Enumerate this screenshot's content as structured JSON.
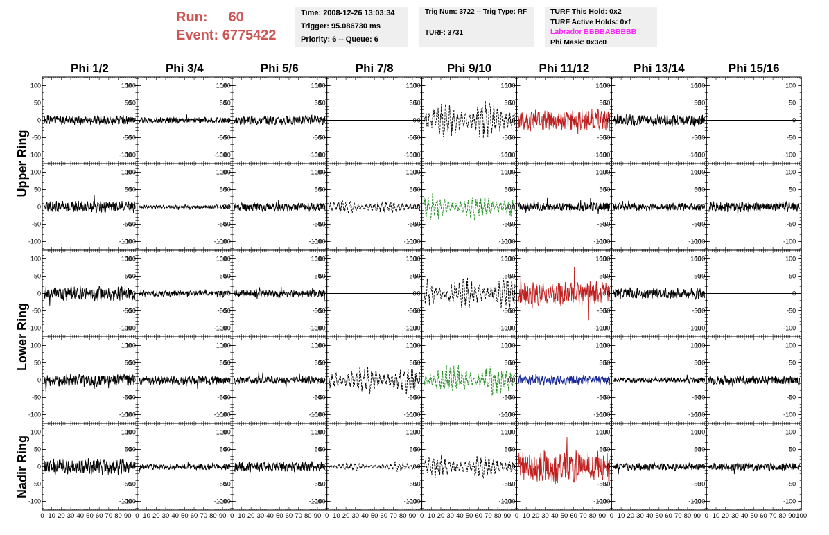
{
  "header": {
    "run_label": "Run:",
    "run_value": "60",
    "event_label": "Event:",
    "event_value": "6775422"
  },
  "info_boxes": {
    "time": "Time: 2008-12-26 13:03:34",
    "trigger": "Trigger: 95.086730 ms",
    "priority": "Priority: 6 -- Queue: 6",
    "trig_num": "Trig Num: 3722 -- Trig Type: RF",
    "turf": "TURF: 3731",
    "turf_this_hold": "TURF This Hold: 0x2",
    "turf_active_holds": "TURF Active Holds: 0xf",
    "labrador": "Labrador BBBBABBBBB",
    "phi_mask": "Phi Mask: 0x3c0"
  },
  "colors": {
    "run_text": "#cc5555",
    "labrador_text": "#ff22ff",
    "info_box_bg": "#efefef",
    "trace_red": "#c02020",
    "trace_green": "#1f8f1f",
    "trace_blue": "#1a2a9a",
    "trace_black": "#000000"
  },
  "chart_data": {
    "type": "line",
    "phi_sectors": [
      "Phi 1/2",
      "Phi 3/4",
      "Phi 5/6",
      "Phi 7/8",
      "Phi 9/10",
      "Phi 11/12",
      "Phi 13/14",
      "Phi 15/16"
    ],
    "rings": [
      "Upper Ring",
      "Lower Ring",
      "Nadir Ring"
    ],
    "ring_spans": [
      2,
      2,
      1
    ],
    "rows": 5,
    "x_range": [
      0,
      100
    ],
    "y_range": [
      -125,
      125
    ],
    "x_ticks": [
      "0",
      "10",
      "20",
      "30",
      "40",
      "50",
      "60",
      "70",
      "80",
      "90",
      "100"
    ],
    "y_ticks": [
      "100",
      "50",
      "0",
      "-50",
      "-100"
    ],
    "panels": [
      [
        {
          "style": "solid",
          "color": "black",
          "amp": 14,
          "seed": 1
        },
        {
          "style": "solid",
          "color": "black",
          "amp": 10,
          "seed": 2
        },
        {
          "style": "solid",
          "color": "black",
          "amp": 15,
          "seed": 3
        },
        {
          "style": "flat",
          "color": "black",
          "amp": 0,
          "seed": 4
        },
        {
          "style": "dashed",
          "color": "black",
          "amp": 60,
          "seed": 5
        },
        {
          "style": "solid",
          "color": "red",
          "amp": 33,
          "seed": 6
        },
        {
          "style": "solid",
          "color": "black",
          "amp": 18,
          "seed": 7
        },
        {
          "style": "flat",
          "color": "black",
          "amp": 0,
          "seed": 8
        }
      ],
      [
        {
          "style": "solid",
          "color": "black",
          "amp": 18,
          "seed": 9
        },
        {
          "style": "solid",
          "color": "black",
          "amp": 6,
          "seed": 10
        },
        {
          "style": "solid",
          "color": "black",
          "amp": 14,
          "seed": 11
        },
        {
          "style": "dashed",
          "color": "black",
          "amp": 22,
          "seed": 12
        },
        {
          "style": "dashed",
          "color": "green",
          "amp": 42,
          "seed": 13
        },
        {
          "style": "solid",
          "color": "black",
          "amp": 14,
          "seed": 14
        },
        {
          "style": "solid",
          "color": "black",
          "amp": 12,
          "seed": 15
        },
        {
          "style": "solid",
          "color": "black",
          "amp": 16,
          "seed": 16
        }
      ],
      [
        {
          "style": "solid",
          "color": "black",
          "amp": 22,
          "seed": 17
        },
        {
          "style": "solid",
          "color": "black",
          "amp": 10,
          "seed": 18
        },
        {
          "style": "solid",
          "color": "black",
          "amp": 12,
          "seed": 19
        },
        {
          "style": "flat",
          "color": "black",
          "amp": 0,
          "seed": 20
        },
        {
          "style": "dashed",
          "color": "black",
          "amp": 52,
          "seed": 21
        },
        {
          "style": "solid",
          "color": "red",
          "amp": 38,
          "seed": 22
        },
        {
          "style": "solid",
          "color": "black",
          "amp": 18,
          "seed": 23
        },
        {
          "style": "flat",
          "color": "black",
          "amp": 0,
          "seed": 24
        }
      ],
      [
        {
          "style": "solid",
          "color": "black",
          "amp": 20,
          "seed": 25
        },
        {
          "style": "solid",
          "color": "black",
          "amp": 14,
          "seed": 26
        },
        {
          "style": "solid",
          "color": "black",
          "amp": 12,
          "seed": 27
        },
        {
          "style": "dashed",
          "color": "black",
          "amp": 45,
          "seed": 28
        },
        {
          "style": "dashed",
          "color": "green",
          "amp": 52,
          "seed": 29
        },
        {
          "style": "solid",
          "color": "blue",
          "amp": 16,
          "seed": 30
        },
        {
          "style": "solid",
          "color": "black",
          "amp": 8,
          "seed": 31
        },
        {
          "style": "solid",
          "color": "black",
          "amp": 14,
          "seed": 32
        }
      ],
      [
        {
          "style": "solid",
          "color": "black",
          "amp": 25,
          "seed": 33
        },
        {
          "style": "solid",
          "color": "black",
          "amp": 10,
          "seed": 34
        },
        {
          "style": "solid",
          "color": "black",
          "amp": 16,
          "seed": 35
        },
        {
          "style": "dashed",
          "color": "black",
          "amp": 14,
          "seed": 36
        },
        {
          "style": "dashed",
          "color": "black",
          "amp": 38,
          "seed": 37
        },
        {
          "style": "solid",
          "color": "red",
          "amp": 50,
          "seed": 38
        },
        {
          "style": "solid",
          "color": "black",
          "amp": 12,
          "seed": 39
        },
        {
          "style": "solid",
          "color": "black",
          "amp": 12,
          "seed": 40
        }
      ]
    ]
  }
}
